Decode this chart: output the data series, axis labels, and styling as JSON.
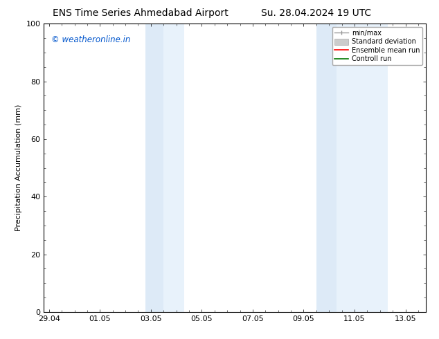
{
  "title_left": "ENS Time Series Ahmedabad Airport",
  "title_right": "Su. 28.04.2024 19 UTC",
  "ylabel": "Precipitation Accumulation (mm)",
  "watermark": "© weatheronline.in",
  "watermark_color": "#0055cc",
  "ylim": [
    0,
    100
  ],
  "yticks": [
    0,
    20,
    40,
    60,
    80,
    100
  ],
  "xtick_labels": [
    "29.04",
    "01.05",
    "03.05",
    "05.05",
    "07.05",
    "09.05",
    "11.05",
    "13.05"
  ],
  "background_color": "#ffffff",
  "plot_bg_color": "#ffffff",
  "shaded_regions": [
    {
      "x_start": 3.8,
      "x_end": 4.5,
      "color": "#ddeaf7"
    },
    {
      "x_start": 4.5,
      "x_end": 5.3,
      "color": "#e8f2fb"
    },
    {
      "x_start": 10.5,
      "x_end": 11.3,
      "color": "#ddeaf7"
    },
    {
      "x_start": 11.3,
      "x_end": 13.3,
      "color": "#e8f2fb"
    }
  ],
  "legend_items": [
    {
      "label": "min/max",
      "color": "#999999",
      "style": "line_with_bar"
    },
    {
      "label": "Standard deviation",
      "color": "#cccccc",
      "style": "rect"
    },
    {
      "label": "Ensemble mean run",
      "color": "#ff0000",
      "style": "line"
    },
    {
      "label": "Controll run",
      "color": "#007700",
      "style": "line"
    }
  ],
  "x_positions": [
    0,
    2,
    4,
    6,
    8,
    10,
    12,
    14
  ],
  "xmin": -0.2,
  "xmax": 14.8,
  "title_fontsize": 10,
  "axis_fontsize": 8,
  "tick_fontsize": 8,
  "legend_fontsize": 7
}
